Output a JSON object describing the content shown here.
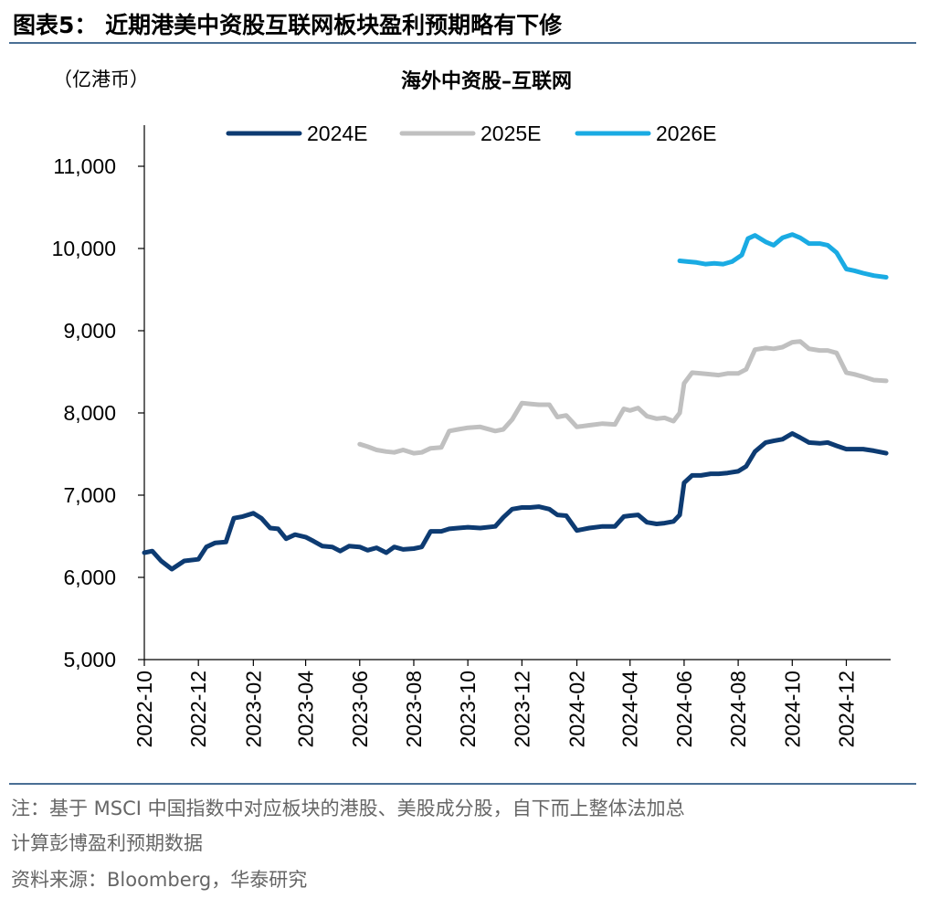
{
  "figure": {
    "title": "图表5： 近期港美中资股互联网板块盈利预期略有下修",
    "unit": "（亿港币）",
    "note_line1": "注：基于 MSCI 中国指数中对应板块的港股、美股成分股，自下而上整体法加总",
    "note_line2": "计算彭博盈利预期数据",
    "source": "资料来源：Bloomberg，华泰研究"
  },
  "colors": {
    "2024E": "#0d3b72",
    "2025E": "#c0c0c0",
    "2026E": "#1aabe3",
    "rule": "#4a6f94"
  },
  "chart_data": {
    "type": "line",
    "title": "海外中资股–互联网",
    "ylabel": "（亿港币）",
    "xlabel": "",
    "ylim": [
      5000,
      11500
    ],
    "yticks": [
      5000,
      6000,
      7000,
      8000,
      9000,
      10000,
      11000
    ],
    "ytick_labels": [
      "5,000",
      "6,000",
      "7,000",
      "8,000",
      "9,000",
      "10,000",
      "11,000"
    ],
    "xlim": [
      "2022-10-01",
      "2025-01-20"
    ],
    "xtick_labels": [
      "2022-10",
      "2022-12",
      "2023-02",
      "2023-04",
      "2023-06",
      "2023-08",
      "2023-10",
      "2023-12",
      "2024-02",
      "2024-04",
      "2024-06",
      "2024-08",
      "2024-10",
      "2024-12"
    ],
    "grid": false,
    "legend_position": "top-center",
    "series": [
      {
        "name": "2024E",
        "x": [
          "2022-10-01",
          "2022-10-10",
          "2022-10-20",
          "2022-11-01",
          "2022-11-15",
          "2022-12-01",
          "2022-12-10",
          "2022-12-20",
          "2023-01-01",
          "2023-01-10",
          "2023-01-20",
          "2023-02-01",
          "2023-02-10",
          "2023-02-20",
          "2023-03-01",
          "2023-03-10",
          "2023-03-20",
          "2023-04-01",
          "2023-04-10",
          "2023-04-20",
          "2023-05-01",
          "2023-05-10",
          "2023-05-20",
          "2023-06-01",
          "2023-06-10",
          "2023-06-20",
          "2023-07-01",
          "2023-07-10",
          "2023-07-20",
          "2023-08-01",
          "2023-08-10",
          "2023-08-20",
          "2023-09-01",
          "2023-09-10",
          "2023-09-20",
          "2023-10-01",
          "2023-10-15",
          "2023-11-01",
          "2023-11-10",
          "2023-11-20",
          "2023-12-01",
          "2023-12-10",
          "2023-12-20",
          "2024-01-01",
          "2024-01-10",
          "2024-01-20",
          "2024-02-01",
          "2024-02-15",
          "2024-03-01",
          "2024-03-15",
          "2024-03-25",
          "2024-04-01",
          "2024-04-10",
          "2024-04-20",
          "2024-05-01",
          "2024-05-10",
          "2024-05-20",
          "2024-05-27",
          "2024-06-01",
          "2024-06-10",
          "2024-06-20",
          "2024-07-01",
          "2024-07-10",
          "2024-07-20",
          "2024-08-01",
          "2024-08-10",
          "2024-08-20",
          "2024-09-01",
          "2024-09-10",
          "2024-09-20",
          "2024-10-01",
          "2024-10-10",
          "2024-10-20",
          "2024-11-01",
          "2024-11-10",
          "2024-11-20",
          "2024-12-01",
          "2024-12-10",
          "2024-12-20",
          "2025-01-01",
          "2025-01-15"
        ],
        "y": [
          6300,
          6320,
          6200,
          6100,
          6200,
          6220,
          6370,
          6420,
          6430,
          6720,
          6740,
          6780,
          6720,
          6600,
          6590,
          6470,
          6520,
          6490,
          6440,
          6380,
          6370,
          6320,
          6380,
          6370,
          6330,
          6360,
          6300,
          6370,
          6340,
          6350,
          6370,
          6560,
          6560,
          6590,
          6600,
          6610,
          6600,
          6620,
          6730,
          6830,
          6850,
          6850,
          6860,
          6830,
          6760,
          6750,
          6570,
          6600,
          6620,
          6620,
          6740,
          6750,
          6760,
          6670,
          6650,
          6660,
          6680,
          6760,
          7150,
          7240,
          7240,
          7260,
          7260,
          7270,
          7290,
          7350,
          7530,
          7640,
          7660,
          7680,
          7750,
          7700,
          7640,
          7630,
          7640,
          7600,
          7560,
          7560,
          7560,
          7540,
          7510
        ]
      },
      {
        "name": "2025E",
        "x": [
          "2023-06-01",
          "2023-06-10",
          "2023-06-20",
          "2023-07-01",
          "2023-07-10",
          "2023-07-20",
          "2023-08-01",
          "2023-08-10",
          "2023-08-20",
          "2023-09-01",
          "2023-09-10",
          "2023-09-20",
          "2023-10-01",
          "2023-10-15",
          "2023-11-01",
          "2023-11-10",
          "2023-11-20",
          "2023-12-01",
          "2023-12-10",
          "2023-12-20",
          "2024-01-01",
          "2024-01-10",
          "2024-01-20",
          "2024-02-01",
          "2024-02-15",
          "2024-03-01",
          "2024-03-15",
          "2024-03-25",
          "2024-04-01",
          "2024-04-10",
          "2024-04-20",
          "2024-05-01",
          "2024-05-10",
          "2024-05-20",
          "2024-05-27",
          "2024-06-01",
          "2024-06-10",
          "2024-06-20",
          "2024-07-01",
          "2024-07-10",
          "2024-07-20",
          "2024-08-01",
          "2024-08-10",
          "2024-08-20",
          "2024-09-01",
          "2024-09-10",
          "2024-09-20",
          "2024-10-01",
          "2024-10-10",
          "2024-10-20",
          "2024-11-01",
          "2024-11-10",
          "2024-11-20",
          "2024-12-01",
          "2024-12-10",
          "2024-12-20",
          "2025-01-01",
          "2025-01-15"
        ],
        "y": [
          7620,
          7590,
          7550,
          7530,
          7520,
          7550,
          7510,
          7520,
          7570,
          7580,
          7780,
          7800,
          7820,
          7830,
          7780,
          7800,
          7920,
          8120,
          8110,
          8100,
          8100,
          7950,
          7970,
          7830,
          7850,
          7870,
          7860,
          8050,
          8030,
          8060,
          7960,
          7930,
          7940,
          7900,
          8000,
          8360,
          8490,
          8480,
          8470,
          8460,
          8480,
          8480,
          8530,
          8770,
          8790,
          8780,
          8800,
          8860,
          8870,
          8780,
          8760,
          8760,
          8730,
          8490,
          8470,
          8440,
          8400,
          8390
        ]
      },
      {
        "name": "2026E",
        "x": [
          "2024-05-27",
          "2024-06-05",
          "2024-06-15",
          "2024-06-25",
          "2024-07-05",
          "2024-07-15",
          "2024-07-25",
          "2024-08-05",
          "2024-08-12",
          "2024-08-20",
          "2024-09-01",
          "2024-09-10",
          "2024-09-20",
          "2024-10-01",
          "2024-10-10",
          "2024-10-20",
          "2024-11-01",
          "2024-11-10",
          "2024-11-20",
          "2024-12-01",
          "2024-12-10",
          "2024-12-20",
          "2025-01-01",
          "2025-01-15"
        ],
        "y": [
          9850,
          9840,
          9830,
          9810,
          9820,
          9810,
          9840,
          9920,
          10120,
          10160,
          10080,
          10040,
          10130,
          10170,
          10130,
          10060,
          10060,
          10040,
          9950,
          9750,
          9730,
          9700,
          9670,
          9650
        ]
      }
    ]
  }
}
